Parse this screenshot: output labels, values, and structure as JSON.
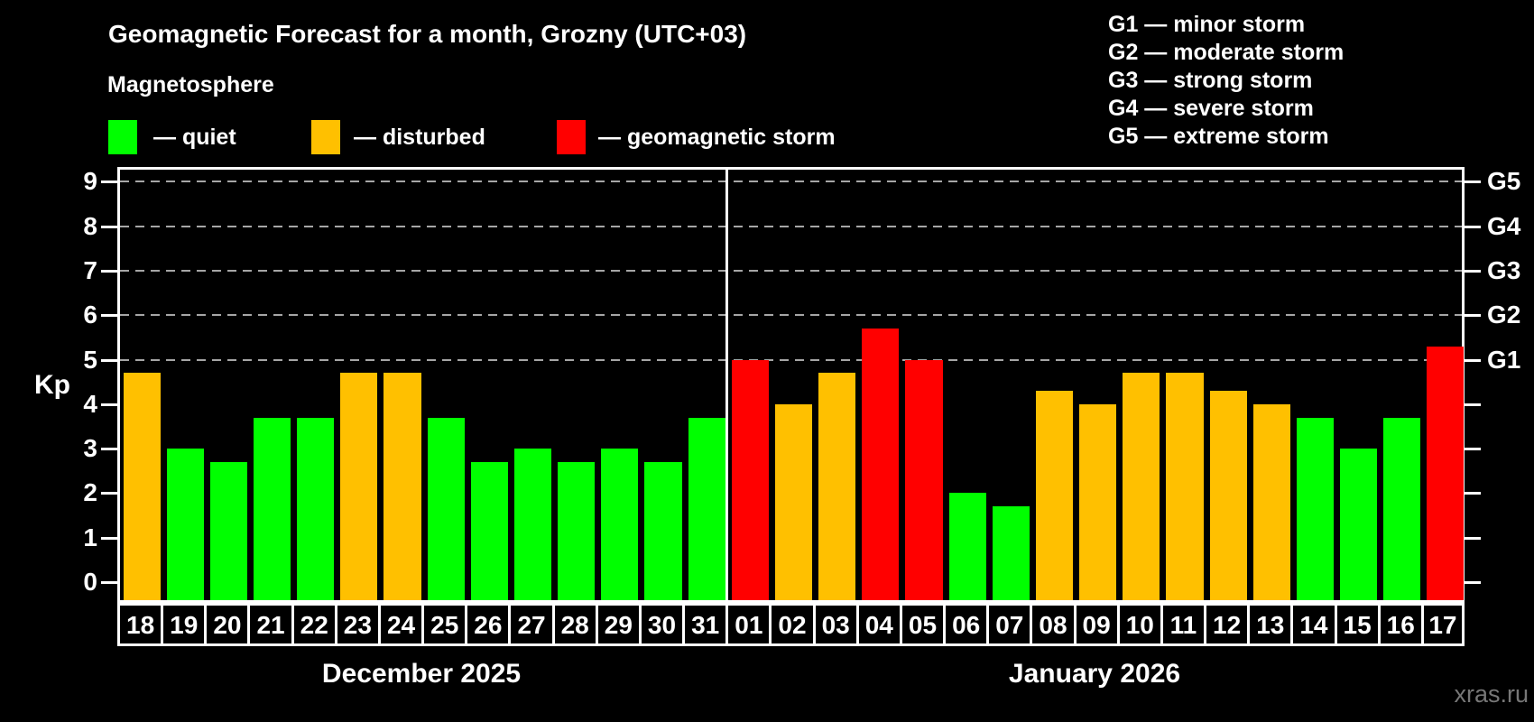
{
  "title": "Geomagnetic Forecast for a month, Grozny (UTC+03)",
  "subtitle": "Magnetosphere",
  "bar_legend": [
    {
      "key": "quiet",
      "label": "— quiet",
      "color": "#00ff00"
    },
    {
      "key": "disturbed",
      "label": "— disturbed",
      "color": "#ffc000"
    },
    {
      "key": "storm",
      "label": "— geomagnetic storm",
      "color": "#ff0000"
    }
  ],
  "storm_scale": [
    {
      "text": "G1 — minor storm"
    },
    {
      "text": "G2 — moderate storm"
    },
    {
      "text": "G3 — strong storm"
    },
    {
      "text": "G4 — severe storm"
    },
    {
      "text": "G5 — extreme storm"
    }
  ],
  "watermark": "xras.ru",
  "chart_data": {
    "type": "bar",
    "ylabel": "Kp",
    "ylim": [
      0,
      9
    ],
    "yticks": [
      "0",
      "1",
      "2",
      "3",
      "4",
      "5",
      "6",
      "7",
      "8",
      "9"
    ],
    "gridlines": [
      5,
      6,
      7,
      8,
      9
    ],
    "grid_style": "dashed",
    "legend_position": "top",
    "colors": {
      "quiet": "#00ff00",
      "disturbed": "#ffc000",
      "storm": "#ff0000"
    },
    "right_axis": [
      {
        "value": 5,
        "label": "G1"
      },
      {
        "value": 6,
        "label": "G2"
      },
      {
        "value": 7,
        "label": "G3"
      },
      {
        "value": 8,
        "label": "G4"
      },
      {
        "value": 9,
        "label": "G5"
      }
    ],
    "months": [
      {
        "label": "December 2025",
        "days": [
          "18",
          "19",
          "20",
          "21",
          "22",
          "23",
          "24",
          "25",
          "26",
          "27",
          "28",
          "29",
          "30",
          "31"
        ],
        "values": [
          4.7,
          3.0,
          2.7,
          3.7,
          3.7,
          4.7,
          4.7,
          3.7,
          2.7,
          3.0,
          2.7,
          3.0,
          2.7,
          3.7
        ],
        "status": [
          "disturbed",
          "quiet",
          "quiet",
          "quiet",
          "quiet",
          "disturbed",
          "disturbed",
          "quiet",
          "quiet",
          "quiet",
          "quiet",
          "quiet",
          "quiet",
          "quiet"
        ]
      },
      {
        "label": "January 2026",
        "days": [
          "01",
          "02",
          "03",
          "04",
          "05",
          "06",
          "07",
          "08",
          "09",
          "10",
          "11",
          "12",
          "13",
          "14",
          "15",
          "16",
          "17"
        ],
        "values": [
          5.0,
          4.0,
          4.7,
          5.7,
          5.0,
          2.0,
          1.7,
          4.3,
          4.0,
          4.7,
          4.7,
          4.3,
          4.0,
          3.7,
          3.0,
          3.7,
          5.3
        ],
        "status": [
          "storm",
          "disturbed",
          "disturbed",
          "storm",
          "storm",
          "quiet",
          "quiet",
          "disturbed",
          "disturbed",
          "disturbed",
          "disturbed",
          "disturbed",
          "disturbed",
          "quiet",
          "quiet",
          "quiet",
          "storm"
        ]
      }
    ]
  }
}
